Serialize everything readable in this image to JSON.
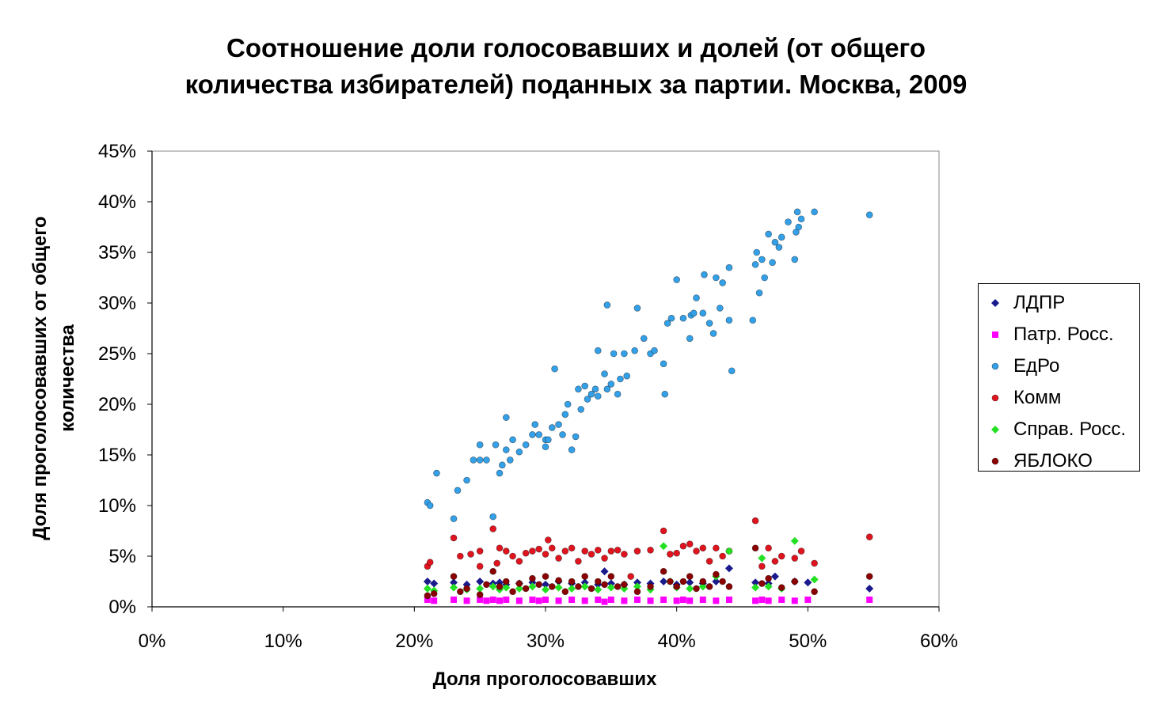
{
  "title_line1": "Соотношение доли голосовавших и долей (от общего",
  "title_line2": "количества избирателей) поданных за партии. Москва, 2009",
  "chart_data": {
    "type": "scatter",
    "title": "Соотношение доли голосовавших и долей (от общего количества избирателей) поданных за партии. Москва, 2009",
    "xlabel": "Доля проголосовавших",
    "ylabel_line1": "Доля проголосовавших от общего",
    "ylabel_line2": "количества",
    "xlim": [
      0,
      60
    ],
    "ylim": [
      0,
      45
    ],
    "x_ticks": [
      "0%",
      "10%",
      "20%",
      "30%",
      "40%",
      "50%",
      "60%"
    ],
    "y_ticks": [
      "0%",
      "5%",
      "10%",
      "15%",
      "20%",
      "25%",
      "30%",
      "35%",
      "40%",
      "45%"
    ],
    "legend_position": "right",
    "grid": false,
    "series": [
      {
        "name": "ЛДПР",
        "marker": "diamond",
        "color": "#1a1a8c",
        "points": [
          [
            21,
            2.5
          ],
          [
            21.5,
            2.3
          ],
          [
            23,
            2.4
          ],
          [
            24,
            2.2
          ],
          [
            25,
            2.5
          ],
          [
            26,
            2.3
          ],
          [
            26.5,
            2.4
          ],
          [
            27,
            2.2
          ],
          [
            28,
            2.3
          ],
          [
            29,
            2.4
          ],
          [
            30,
            2.2
          ],
          [
            31,
            2.5
          ],
          [
            32,
            2.3
          ],
          [
            33,
            2.4
          ],
          [
            34,
            2.2
          ],
          [
            34.5,
            3.5
          ],
          [
            35,
            2.3
          ],
          [
            36,
            2.2
          ],
          [
            37,
            2.4
          ],
          [
            38,
            2.3
          ],
          [
            39,
            2.5
          ],
          [
            40,
            2.2
          ],
          [
            41,
            2.4
          ],
          [
            42,
            2.3
          ],
          [
            43,
            2.5
          ],
          [
            44,
            3.8
          ],
          [
            46,
            2.4
          ],
          [
            47,
            2.3
          ],
          [
            47.5,
            3.0
          ],
          [
            49,
            2.5
          ],
          [
            50,
            2.4
          ],
          [
            54.7,
            1.8
          ]
        ]
      },
      {
        "name": "Патр. Росс.",
        "marker": "square",
        "color": "#ff00ff",
        "points": [
          [
            21,
            0.7
          ],
          [
            21.5,
            0.6
          ],
          [
            23,
            0.7
          ],
          [
            24,
            0.6
          ],
          [
            25,
            0.7
          ],
          [
            25.5,
            0.6
          ],
          [
            26,
            0.7
          ],
          [
            26.5,
            0.6
          ],
          [
            27,
            0.7
          ],
          [
            28,
            0.6
          ],
          [
            29,
            0.7
          ],
          [
            29.5,
            0.6
          ],
          [
            30,
            0.7
          ],
          [
            31,
            0.6
          ],
          [
            32,
            0.7
          ],
          [
            33,
            0.6
          ],
          [
            34,
            0.7
          ],
          [
            34.5,
            0.5
          ],
          [
            35,
            0.7
          ],
          [
            36,
            0.6
          ],
          [
            37,
            0.7
          ],
          [
            38,
            0.6
          ],
          [
            39,
            0.7
          ],
          [
            40,
            0.6
          ],
          [
            40.5,
            0.7
          ],
          [
            41,
            0.6
          ],
          [
            42,
            0.7
          ],
          [
            43,
            0.6
          ],
          [
            44,
            0.7
          ],
          [
            46,
            0.6
          ],
          [
            46.5,
            0.7
          ],
          [
            47,
            0.6
          ],
          [
            48,
            0.7
          ],
          [
            49,
            0.6
          ],
          [
            50,
            0.7
          ],
          [
            54.7,
            0.7
          ]
        ]
      },
      {
        "name": "ЕдРо",
        "marker": "circle",
        "color": "#33a0e8",
        "points": [
          [
            21,
            10.3
          ],
          [
            21.2,
            10
          ],
          [
            21.7,
            13.2
          ],
          [
            23,
            8.7
          ],
          [
            23.3,
            11.5
          ],
          [
            24,
            12.5
          ],
          [
            24.5,
            14.5
          ],
          [
            25,
            14.5
          ],
          [
            25,
            16
          ],
          [
            25.5,
            14.5
          ],
          [
            26,
            8.9
          ],
          [
            26.2,
            16
          ],
          [
            26.5,
            13.2
          ],
          [
            26.7,
            14
          ],
          [
            27,
            18.7
          ],
          [
            27,
            15.5
          ],
          [
            27.3,
            14.5
          ],
          [
            27.5,
            16.5
          ],
          [
            28,
            15.3
          ],
          [
            28.5,
            16
          ],
          [
            29,
            17
          ],
          [
            29.2,
            18
          ],
          [
            29.5,
            17
          ],
          [
            30,
            16.5
          ],
          [
            30,
            15.8
          ],
          [
            30.2,
            16.5
          ],
          [
            30.5,
            17.7
          ],
          [
            30.7,
            23.5
          ],
          [
            31,
            18
          ],
          [
            31.3,
            17
          ],
          [
            31.5,
            19
          ],
          [
            31.7,
            20
          ],
          [
            32,
            15.5
          ],
          [
            32.3,
            16.8
          ],
          [
            32.5,
            21.5
          ],
          [
            32.7,
            19.5
          ],
          [
            33,
            21.8
          ],
          [
            33.2,
            20.5
          ],
          [
            33.5,
            21
          ],
          [
            33.8,
            21.5
          ],
          [
            34,
            25.3
          ],
          [
            34,
            20.8
          ],
          [
            34.5,
            23
          ],
          [
            34.7,
            21.5
          ],
          [
            34.7,
            29.8
          ],
          [
            35,
            22
          ],
          [
            35.2,
            25
          ],
          [
            35.5,
            21
          ],
          [
            35.7,
            22.5
          ],
          [
            36,
            25
          ],
          [
            36.2,
            22.8
          ],
          [
            36.8,
            25.3
          ],
          [
            37,
            29.5
          ],
          [
            37.5,
            26.5
          ],
          [
            38,
            25
          ],
          [
            38.3,
            25.3
          ],
          [
            39,
            24
          ],
          [
            39.1,
            21
          ],
          [
            39.3,
            28
          ],
          [
            39.6,
            28.5
          ],
          [
            40,
            32.3
          ],
          [
            40.5,
            28.5
          ],
          [
            41,
            26.5
          ],
          [
            41.1,
            28.8
          ],
          [
            41.3,
            29
          ],
          [
            41.5,
            30.5
          ],
          [
            42,
            29
          ],
          [
            42.1,
            32.8
          ],
          [
            42.5,
            28
          ],
          [
            42.8,
            27
          ],
          [
            43,
            32.5
          ],
          [
            43.3,
            29.5
          ],
          [
            43.5,
            32
          ],
          [
            44,
            33.5
          ],
          [
            44,
            28.3
          ],
          [
            44.2,
            23.3
          ],
          [
            45.8,
            28.3
          ],
          [
            46,
            33.8
          ],
          [
            46.1,
            35
          ],
          [
            46.3,
            31
          ],
          [
            46.5,
            34.3
          ],
          [
            46.7,
            32.5
          ],
          [
            47,
            36.8
          ],
          [
            47.3,
            34
          ],
          [
            47.5,
            36
          ],
          [
            47.8,
            35.5
          ],
          [
            48,
            36.5
          ],
          [
            48.5,
            38
          ],
          [
            49,
            34.3
          ],
          [
            49.1,
            37
          ],
          [
            49.2,
            39
          ],
          [
            49.3,
            37.5
          ],
          [
            49.5,
            38.3
          ],
          [
            50.5,
            39
          ],
          [
            54.7,
            38.7
          ]
        ]
      },
      {
        "name": "Комм",
        "marker": "circle",
        "color": "#e0141e",
        "points": [
          [
            21,
            4
          ],
          [
            21.2,
            4.4
          ],
          [
            23,
            6.8
          ],
          [
            23.5,
            5
          ],
          [
            24.3,
            5.2
          ],
          [
            25,
            4
          ],
          [
            25,
            5.5
          ],
          [
            26,
            7.7
          ],
          [
            26.3,
            4.3
          ],
          [
            26.5,
            5.8
          ],
          [
            27,
            5.5
          ],
          [
            27.5,
            5
          ],
          [
            28,
            4.5
          ],
          [
            28.5,
            5.3
          ],
          [
            29,
            5.5
          ],
          [
            29.5,
            5.7
          ],
          [
            30,
            5.2
          ],
          [
            30.2,
            6.6
          ],
          [
            30.5,
            5.8
          ],
          [
            31,
            4.8
          ],
          [
            31.5,
            5.5
          ],
          [
            32,
            5.8
          ],
          [
            32.5,
            4.5
          ],
          [
            33,
            5.5
          ],
          [
            33.5,
            5.2
          ],
          [
            34,
            5.6
          ],
          [
            34.5,
            4.8
          ],
          [
            35,
            5.5
          ],
          [
            35.5,
            5.6
          ],
          [
            36,
            5.2
          ],
          [
            36.5,
            3
          ],
          [
            37,
            5.5
          ],
          [
            38,
            5.6
          ],
          [
            39,
            7.5
          ],
          [
            39.5,
            5.2
          ],
          [
            40,
            5.3
          ],
          [
            40.5,
            6
          ],
          [
            41,
            6.2
          ],
          [
            41.5,
            5.5
          ],
          [
            42,
            5.8
          ],
          [
            42.5,
            4.5
          ],
          [
            43,
            5.8
          ],
          [
            43.5,
            5
          ],
          [
            44,
            5.5
          ],
          [
            46,
            8.5
          ],
          [
            46.5,
            4
          ],
          [
            47,
            5.8
          ],
          [
            47.5,
            4.5
          ],
          [
            48,
            5
          ],
          [
            49,
            4.8
          ],
          [
            49.5,
            5.5
          ],
          [
            50.5,
            4.3
          ],
          [
            54.7,
            6.9
          ]
        ]
      },
      {
        "name": "Справ. Росс.",
        "marker": "diamond",
        "color": "#22e022",
        "points": [
          [
            21,
            1.8
          ],
          [
            21.5,
            1.6
          ],
          [
            23,
            1.9
          ],
          [
            24,
            1.7
          ],
          [
            25,
            1.8
          ],
          [
            26,
            2
          ],
          [
            26.5,
            1.7
          ],
          [
            27,
            1.9
          ],
          [
            28,
            1.8
          ],
          [
            29,
            2
          ],
          [
            30,
            1.7
          ],
          [
            31,
            1.9
          ],
          [
            32,
            1.8
          ],
          [
            33,
            2
          ],
          [
            34,
            1.7
          ],
          [
            35,
            1.9
          ],
          [
            36,
            1.8
          ],
          [
            37,
            2
          ],
          [
            38,
            1.7
          ],
          [
            39,
            6
          ],
          [
            39.5,
            2.5
          ],
          [
            40,
            1.9
          ],
          [
            41,
            1.8
          ],
          [
            42,
            2
          ],
          [
            43,
            3
          ],
          [
            44,
            5.5
          ],
          [
            46,
            1.9
          ],
          [
            46.5,
            4.8
          ],
          [
            47,
            2
          ],
          [
            48,
            1.8
          ],
          [
            49,
            6.5
          ],
          [
            50.5,
            2.7
          ]
        ]
      },
      {
        "name": "ЯБЛОКО",
        "marker": "circle",
        "color": "#8b0000",
        "points": [
          [
            21,
            1.1
          ],
          [
            21.5,
            1.3
          ],
          [
            23,
            3
          ],
          [
            23.5,
            1.5
          ],
          [
            24,
            1.8
          ],
          [
            25,
            1.2
          ],
          [
            25.5,
            2.2
          ],
          [
            26,
            3.5
          ],
          [
            26.5,
            2
          ],
          [
            27,
            2.5
          ],
          [
            27.5,
            1.5
          ],
          [
            28,
            2.3
          ],
          [
            28.5,
            1.8
          ],
          [
            29,
            2.8
          ],
          [
            29.5,
            2.2
          ],
          [
            30,
            3
          ],
          [
            30.5,
            2
          ],
          [
            31,
            2.6
          ],
          [
            31.5,
            1.5
          ],
          [
            32,
            2.5
          ],
          [
            32.5,
            2
          ],
          [
            33,
            3
          ],
          [
            33.5,
            1.8
          ],
          [
            34,
            2.5
          ],
          [
            34.5,
            2.2
          ],
          [
            35,
            3
          ],
          [
            35.5,
            2
          ],
          [
            36,
            2.2
          ],
          [
            37,
            1.5
          ],
          [
            38,
            2
          ],
          [
            39,
            3.5
          ],
          [
            39.5,
            2.5
          ],
          [
            40,
            2
          ],
          [
            40.5,
            2.5
          ],
          [
            41,
            3
          ],
          [
            41.5,
            1.8
          ],
          [
            42,
            2.5
          ],
          [
            42.5,
            2
          ],
          [
            43,
            3.2
          ],
          [
            43.5,
            2.5
          ],
          [
            44,
            2
          ],
          [
            46,
            5.8
          ],
          [
            46.5,
            2.3
          ],
          [
            47,
            2.8
          ],
          [
            48,
            1.9
          ],
          [
            49,
            2.5
          ],
          [
            50.5,
            1.5
          ],
          [
            54.7,
            3
          ]
        ]
      }
    ]
  }
}
